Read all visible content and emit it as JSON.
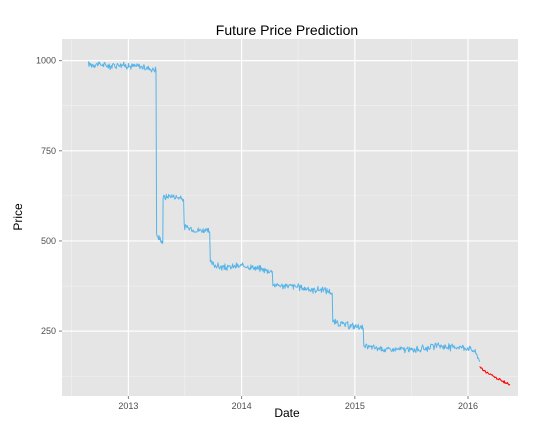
{
  "chart_data": {
    "type": "line",
    "title": "Future Price Prediction",
    "xlabel": "Date",
    "ylabel": "Price",
    "xlim": [
      "2012-06-01",
      "2016-06-10"
    ],
    "ylim": [
      70,
      1060
    ],
    "x_ticks": [
      "2013",
      "2014",
      "2015",
      "2016"
    ],
    "y_ticks": [
      250,
      500,
      750,
      1000
    ],
    "grid": true,
    "legend": "none",
    "series": [
      {
        "color": "#56B4E9",
        "x": [
          "2012-08-25",
          "2012-10-01",
          "2012-11-01",
          "2012-12-01",
          "2013-01-01",
          "2013-02-01",
          "2013-03-01",
          "2013-03-31",
          "2013-04-02",
          "2013-04-06",
          "2013-04-15",
          "2013-04-22",
          "2013-04-23",
          "2013-05-15",
          "2013-06-15",
          "2013-06-28",
          "2013-06-30",
          "2013-07-31",
          "2013-08-31",
          "2013-09-20",
          "2013-09-22",
          "2013-10-15",
          "2013-11-15",
          "2013-12-15",
          "2014-01-15",
          "2014-02-15",
          "2014-03-15",
          "2014-04-10",
          "2014-04-12",
          "2014-05-15",
          "2014-06-15",
          "2014-07-15",
          "2014-08-15",
          "2014-09-15",
          "2014-10-15",
          "2014-10-20",
          "2014-10-22",
          "2014-11-15",
          "2014-12-15",
          "2015-01-15",
          "2015-01-28",
          "2015-01-30",
          "2015-03-01",
          "2015-04-01",
          "2015-05-01",
          "2015-06-01",
          "2015-07-01",
          "2015-08-01",
          "2015-09-01",
          "2015-10-01",
          "2015-11-01",
          "2015-12-01",
          "2016-01-01",
          "2016-01-20",
          "2016-02-01",
          "2016-02-08"
        ],
        "values": [
          990,
          990,
          985,
          990,
          985,
          985,
          980,
          975,
          520,
          510,
          505,
          495,
          620,
          625,
          620,
          615,
          540,
          530,
          530,
          525,
          440,
          430,
          425,
          430,
          430,
          425,
          420,
          415,
          380,
          375,
          375,
          370,
          365,
          365,
          360,
          355,
          275,
          270,
          265,
          262,
          258,
          205,
          205,
          200,
          198,
          200,
          197,
          200,
          205,
          210,
          205,
          207,
          203,
          195,
          180,
          165
        ]
      },
      {
        "color": "#FF0000",
        "x": [
          "2016-02-08",
          "2016-03-01",
          "2016-04-01",
          "2016-05-15"
        ],
        "values": [
          150,
          135,
          120,
          100
        ]
      }
    ]
  }
}
